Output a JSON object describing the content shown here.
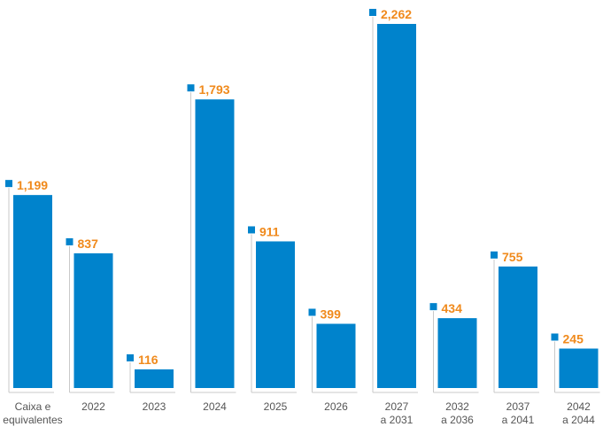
{
  "colors": {
    "bar": "#0083cc",
    "value_label": "#f08a1c",
    "marker": "#0083cc",
    "leader": "#c9c9c9",
    "category_label": "#555555"
  },
  "chart_data": {
    "type": "bar",
    "categories": [
      [
        "Caixa e",
        "equivalentes"
      ],
      [
        "2022"
      ],
      [
        "2023"
      ],
      [
        "2024"
      ],
      [
        "2025"
      ],
      [
        "2026"
      ],
      [
        "2027",
        "a 2031"
      ],
      [
        "2032",
        "a 2036"
      ],
      [
        "2037",
        "a 2041"
      ],
      [
        "2042",
        "a 2044"
      ]
    ],
    "values": [
      1199,
      837,
      116,
      1793,
      911,
      399,
      2262,
      434,
      755,
      245
    ],
    "value_labels": [
      "1,199",
      "837",
      "116",
      "1,793",
      "911",
      "399",
      "2,262",
      "434",
      "755",
      "245"
    ],
    "ylim": [
      0,
      2262
    ],
    "grid": false,
    "legend": "none"
  }
}
